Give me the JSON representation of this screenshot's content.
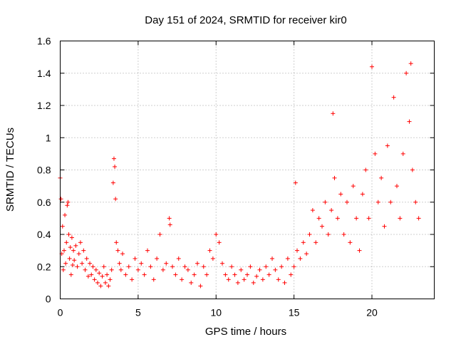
{
  "chart_data": {
    "type": "scatter",
    "title": "Day 151 of 2024, SRMTID for receiver kir0",
    "xlabel": "GPS time / hours",
    "ylabel": "SRMTID / TECUs",
    "xlim": [
      0,
      24
    ],
    "ylim": [
      0,
      1.6
    ],
    "x_ticks": [
      0,
      5,
      10,
      15,
      20
    ],
    "x_tick_labels": [
      "0",
      "5",
      "10",
      "15",
      "20"
    ],
    "y_ticks": [
      0,
      0.2,
      0.4,
      0.6,
      0.8,
      1.0,
      1.2,
      1.4,
      1.6
    ],
    "y_tick_labels": [
      "0",
      "0.2",
      "0.4",
      "0.6",
      "0.8",
      "1",
      "1.2",
      "1.4",
      "1.6"
    ],
    "grid": true,
    "marker": "plus",
    "marker_color": "#ff0000",
    "series": [
      {
        "name": "kir0",
        "x": [
          0.0,
          0.05,
          0.1,
          0.15,
          0.2,
          0.25,
          0.3,
          0.35,
          0.4,
          0.45,
          0.5,
          0.55,
          0.6,
          0.65,
          0.7,
          0.75,
          0.8,
          0.85,
          0.9,
          1.0,
          1.1,
          1.2,
          1.3,
          1.4,
          1.5,
          1.6,
          1.7,
          1.8,
          1.9,
          2.0,
          2.1,
          2.2,
          2.3,
          2.4,
          2.5,
          2.6,
          2.7,
          2.8,
          2.9,
          3.0,
          3.1,
          3.2,
          3.3,
          3.4,
          3.45,
          3.5,
          3.55,
          3.6,
          3.7,
          3.8,
          3.9,
          4.0,
          4.2,
          4.4,
          4.6,
          4.8,
          5.0,
          5.2,
          5.4,
          5.6,
          5.8,
          6.0,
          6.2,
          6.4,
          6.6,
          6.8,
          7.0,
          7.05,
          7.2,
          7.4,
          7.6,
          7.8,
          8.0,
          8.2,
          8.4,
          8.6,
          8.8,
          9.0,
          9.2,
          9.4,
          9.6,
          9.8,
          10.0,
          10.2,
          10.4,
          10.6,
          10.8,
          11.0,
          11.2,
          11.4,
          11.6,
          11.8,
          12.0,
          12.2,
          12.4,
          12.6,
          12.8,
          13.0,
          13.2,
          13.4,
          13.6,
          13.8,
          14.0,
          14.2,
          14.4,
          14.6,
          14.8,
          15.0,
          15.1,
          15.2,
          15.4,
          15.6,
          15.8,
          16.0,
          16.2,
          16.4,
          16.6,
          16.8,
          17.0,
          17.2,
          17.4,
          17.5,
          17.6,
          17.8,
          18.0,
          18.2,
          18.4,
          18.6,
          18.8,
          19.0,
          19.2,
          19.4,
          19.6,
          19.8,
          20.0,
          20.2,
          20.4,
          20.6,
          20.8,
          21.0,
          21.2,
          21.4,
          21.6,
          21.8,
          22.0,
          22.2,
          22.4,
          22.5,
          22.6,
          22.8,
          23.0
        ],
        "y": [
          0.75,
          0.62,
          0.28,
          0.45,
          0.18,
          0.3,
          0.52,
          0.22,
          0.35,
          0.58,
          0.6,
          0.4,
          0.25,
          0.32,
          0.15,
          0.38,
          0.21,
          0.3,
          0.24,
          0.33,
          0.2,
          0.28,
          0.35,
          0.22,
          0.3,
          0.18,
          0.25,
          0.14,
          0.22,
          0.15,
          0.2,
          0.12,
          0.18,
          0.1,
          0.16,
          0.08,
          0.14,
          0.2,
          0.1,
          0.15,
          0.08,
          0.12,
          0.18,
          0.72,
          0.87,
          0.82,
          0.62,
          0.35,
          0.3,
          0.22,
          0.18,
          0.28,
          0.15,
          0.2,
          0.12,
          0.25,
          0.18,
          0.22,
          0.15,
          0.3,
          0.2,
          0.12,
          0.25,
          0.4,
          0.18,
          0.22,
          0.5,
          0.46,
          0.2,
          0.15,
          0.25,
          0.12,
          0.2,
          0.18,
          0.1,
          0.15,
          0.22,
          0.08,
          0.2,
          0.15,
          0.3,
          0.25,
          0.4,
          0.35,
          0.22,
          0.15,
          0.12,
          0.2,
          0.15,
          0.1,
          0.18,
          0.12,
          0.15,
          0.2,
          0.1,
          0.14,
          0.18,
          0.12,
          0.2,
          0.15,
          0.25,
          0.18,
          0.12,
          0.2,
          0.1,
          0.25,
          0.15,
          0.2,
          0.72,
          0.3,
          0.25,
          0.35,
          0.28,
          0.4,
          0.55,
          0.35,
          0.5,
          0.45,
          0.6,
          0.4,
          0.55,
          1.15,
          0.75,
          0.5,
          0.65,
          0.4,
          0.6,
          0.35,
          0.7,
          0.5,
          0.3,
          0.65,
          0.8,
          0.5,
          1.44,
          0.9,
          0.6,
          0.75,
          0.45,
          0.95,
          0.6,
          1.25,
          0.7,
          0.5,
          0.9,
          1.4,
          1.1,
          1.46,
          0.8,
          0.6,
          0.5
        ]
      }
    ]
  }
}
